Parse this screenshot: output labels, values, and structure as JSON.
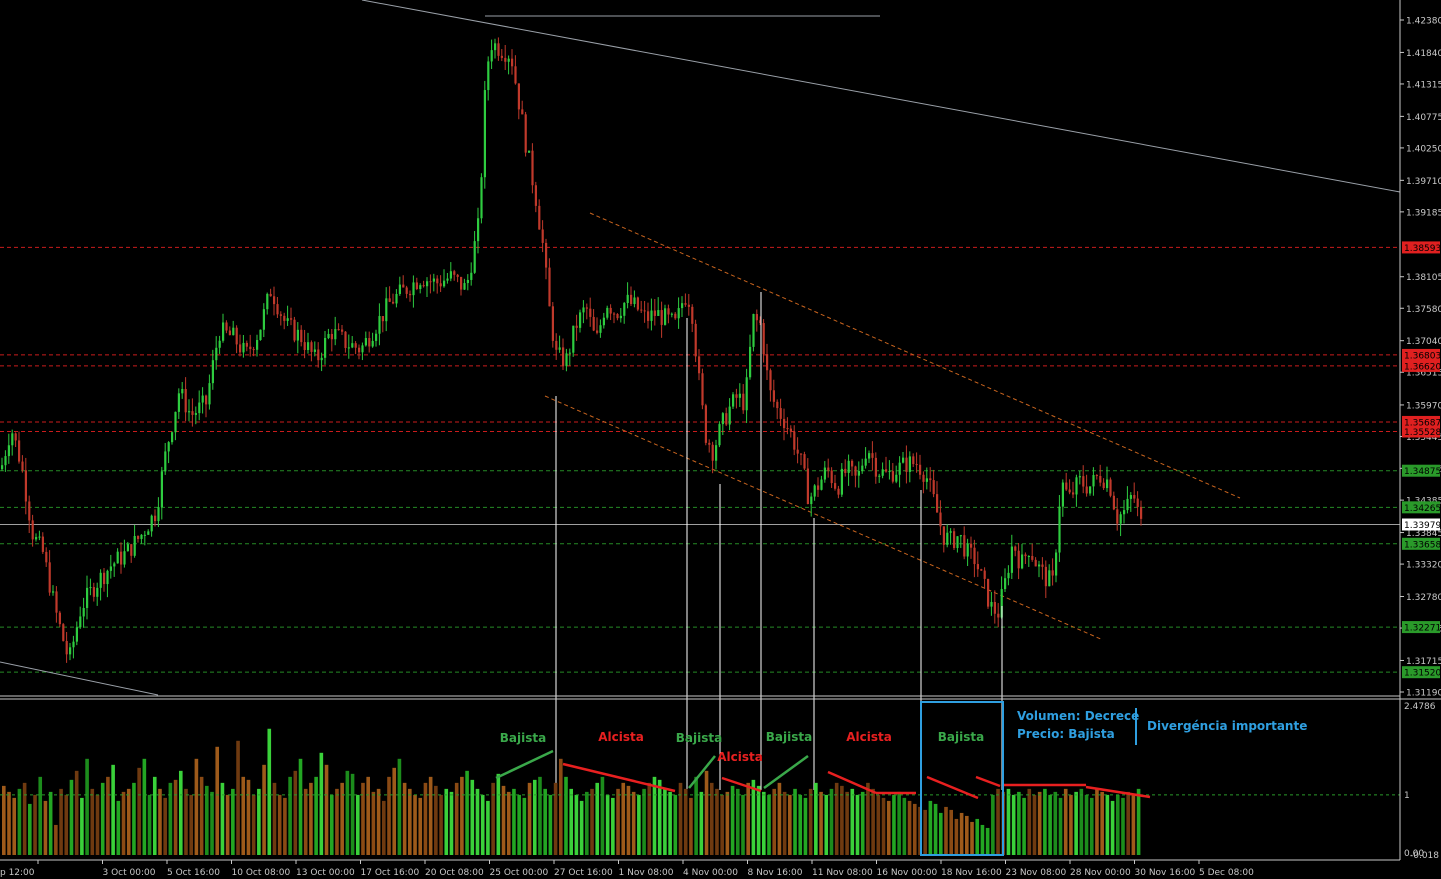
{
  "chart_data": [
    {
      "type": "candlestick",
      "title": "",
      "price_axis": {
        "ticks": [
          "1.42380",
          "1.41840",
          "1.41315",
          "1.40775",
          "1.40250",
          "1.39710",
          "1.39185",
          "1.38105",
          "1.37580",
          "1.37040",
          "1.36515",
          "1.35970",
          "1.35445",
          "1.34915",
          "1.34385",
          "1.33845",
          "1.33320",
          "1.32780",
          "1.32255",
          "1.31715",
          "1.31190"
        ],
        "ylim": [
          1.3119,
          1.4238
        ]
      },
      "price_levels": [
        {
          "label": "1.38593",
          "value": 1.38593,
          "color": "#e02020"
        },
        {
          "label": "1.36803",
          "value": 1.36803,
          "color": "#e02020"
        },
        {
          "label": "1.36620",
          "value": 1.3662,
          "color": "#e02020"
        },
        {
          "label": "1.35687",
          "value": 1.35687,
          "color": "#e02020"
        },
        {
          "label": "1.35528",
          "value": 1.35528,
          "color": "#e02020"
        },
        {
          "label": "1.34875",
          "value": 1.34875,
          "color": "#2a9a2a"
        },
        {
          "label": "1.34265",
          "value": 1.34265,
          "color": "#2a9a2a"
        },
        {
          "label": "1.33979",
          "value": 1.33979,
          "color": "#c8c8c8"
        },
        {
          "label": "1.33658",
          "value": 1.33658,
          "color": "#2a9a2a"
        },
        {
          "label": "1.32271",
          "value": 1.32271,
          "color": "#2a9a2a"
        },
        {
          "label": "1.31520",
          "value": 1.3152,
          "color": "#2a9a2a"
        }
      ],
      "time_axis": {
        "ticks": [
          "p 12:00",
          "3 Oct 00:00",
          "5 Oct 16:00",
          "10 Oct 08:00",
          "13 Oct 00:00",
          "17 Oct 16:00",
          "20 Oct 08:00",
          "25 Oct 00:00",
          "27 Oct 16:00",
          "1 Nov 08:00",
          "4 Nov 00:00",
          "8 Nov 16:00",
          "11 Nov 08:00",
          "16 Nov 00:00",
          "18 Nov 16:00",
          "23 Nov 08:00",
          "28 Nov 00:00",
          "30 Nov 16:00",
          "5 Dec 08:00"
        ]
      },
      "price_path": [
        [
          0,
          1.349
        ],
        [
          10,
          1.356
        ],
        [
          20,
          1.35
        ],
        [
          32,
          1.338
        ],
        [
          42,
          1.335
        ],
        [
          55,
          1.325
        ],
        [
          68,
          1.317
        ],
        [
          80,
          1.326
        ],
        [
          95,
          1.33
        ],
        [
          110,
          1.333
        ],
        [
          125,
          1.335
        ],
        [
          140,
          1.338
        ],
        [
          155,
          1.342
        ],
        [
          165,
          1.352
        ],
        [
          178,
          1.362
        ],
        [
          190,
          1.358
        ],
        [
          205,
          1.36
        ],
        [
          218,
          1.372
        ],
        [
          232,
          1.371
        ],
        [
          245,
          1.368
        ],
        [
          258,
          1.372
        ],
        [
          270,
          1.379
        ],
        [
          285,
          1.373
        ],
        [
          300,
          1.371
        ],
        [
          315,
          1.367
        ],
        [
          330,
          1.372
        ],
        [
          345,
          1.37
        ],
        [
          360,
          1.369
        ],
        [
          375,
          1.373
        ],
        [
          390,
          1.377
        ],
        [
          405,
          1.379
        ],
        [
          420,
          1.381
        ],
        [
          435,
          1.38
        ],
        [
          450,
          1.381
        ],
        [
          465,
          1.379
        ],
        [
          478,
          1.39
        ],
        [
          485,
          1.415
        ],
        [
          490,
          1.42
        ],
        [
          500,
          1.419
        ],
        [
          510,
          1.418
        ],
        [
          518,
          1.41
        ],
        [
          525,
          1.403
        ],
        [
          535,
          1.394
        ],
        [
          542,
          1.386
        ],
        [
          548,
          1.376
        ],
        [
          555,
          1.368
        ],
        [
          565,
          1.367
        ],
        [
          575,
          1.373
        ],
        [
          585,
          1.376
        ],
        [
          595,
          1.37
        ],
        [
          605,
          1.377
        ],
        [
          615,
          1.375
        ],
        [
          625,
          1.377
        ],
        [
          635,
          1.376
        ],
        [
          645,
          1.374
        ],
        [
          655,
          1.375
        ],
        [
          665,
          1.374
        ],
        [
          675,
          1.373
        ],
        [
          683,
          1.378
        ],
        [
          690,
          1.377
        ],
        [
          697,
          1.365
        ],
        [
          704,
          1.355
        ],
        [
          712,
          1.352
        ],
        [
          720,
          1.356
        ],
        [
          728,
          1.359
        ],
        [
          736,
          1.361
        ],
        [
          744,
          1.36
        ],
        [
          752,
          1.374
        ],
        [
          760,
          1.373
        ],
        [
          768,
          1.362
        ],
        [
          776,
          1.359
        ],
        [
          784,
          1.357
        ],
        [
          792,
          1.354
        ],
        [
          800,
          1.35
        ],
        [
          808,
          1.344
        ],
        [
          816,
          1.346
        ],
        [
          826,
          1.349
        ],
        [
          836,
          1.346
        ],
        [
          846,
          1.349
        ],
        [
          856,
          1.347
        ],
        [
          866,
          1.353
        ],
        [
          876,
          1.349
        ],
        [
          886,
          1.348
        ],
        [
          896,
          1.349
        ],
        [
          906,
          1.35
        ],
        [
          916,
          1.35
        ],
        [
          925,
          1.348
        ],
        [
          934,
          1.343
        ],
        [
          942,
          1.338
        ],
        [
          950,
          1.337
        ],
        [
          958,
          1.338
        ],
        [
          966,
          1.335
        ],
        [
          974,
          1.334
        ],
        [
          982,
          1.33
        ],
        [
          990,
          1.326
        ],
        [
          997,
          1.325
        ],
        [
          1004,
          1.33
        ],
        [
          1012,
          1.337
        ],
        [
          1020,
          1.333
        ],
        [
          1028,
          1.336
        ],
        [
          1036,
          1.333
        ],
        [
          1044,
          1.331
        ],
        [
          1052,
          1.33
        ],
        [
          1060,
          1.347
        ],
        [
          1068,
          1.344
        ],
        [
          1078,
          1.347
        ],
        [
          1088,
          1.346
        ],
        [
          1098,
          1.348
        ],
        [
          1108,
          1.347
        ],
        [
          1116,
          1.341
        ],
        [
          1124,
          1.342
        ],
        [
          1132,
          1.345
        ],
        [
          1140,
          1.3398
        ]
      ]
    },
    {
      "type": "bar",
      "title": "",
      "ylim": [
        0,
        2.4786
      ],
      "y_ticks": [
        "2.4786",
        "1",
        "0.00",
        "-0.018"
      ],
      "values": [
        1.15,
        1.05,
        0.95,
        1.1,
        1.2,
        0.85,
        1.0,
        1.3,
        0.9,
        1.05,
        0.5,
        1.1,
        1.0,
        1.25,
        1.4,
        0.95,
        1.6,
        1.1,
        1.0,
        1.2,
        1.3,
        1.5,
        0.9,
        1.05,
        1.1,
        1.2,
        1.45,
        1.6,
        1.0,
        1.3,
        1.1,
        0.95,
        1.2,
        1.25,
        1.4,
        1.1,
        1.0,
        1.6,
        1.3,
        1.15,
        1.05,
        1.8,
        1.2,
        1.0,
        1.1,
        1.9,
        1.3,
        1.25,
        1.0,
        1.1,
        1.5,
        2.1,
        1.2,
        1.0,
        0.95,
        1.3,
        1.4,
        1.6,
        1.1,
        1.2,
        1.3,
        1.7,
        1.5,
        1.0,
        1.1,
        1.2,
        1.4,
        1.35,
        1.0,
        1.2,
        1.3,
        1.05,
        1.1,
        0.9,
        1.3,
        1.45,
        1.6,
        1.2,
        1.1,
        1.0,
        0.95,
        1.2,
        1.3,
        1.15,
        1.0,
        1.1,
        1.05,
        1.2,
        1.3,
        1.4,
        1.25,
        1.1,
        1.0,
        0.9,
        1.2,
        1.35,
        1.15,
        1.05,
        1.1,
        1.0,
        0.95,
        1.2,
        1.25,
        1.3,
        1.1,
        1.0,
        1.2,
        1.6,
        1.3,
        1.1,
        1.0,
        0.9,
        1.05,
        1.1,
        1.2,
        1.3,
        1.0,
        0.95,
        1.1,
        1.2,
        1.15,
        1.05,
        1.0,
        1.1,
        1.2,
        1.3,
        1.25,
        1.1,
        1.05,
        1.0,
        1.2,
        1.1,
        0.95,
        1.3,
        1.05,
        1.4,
        1.2,
        1.1,
        1.0,
        1.05,
        1.15,
        1.1,
        1.0,
        1.2,
        1.25,
        1.15,
        1.05,
        1.0,
        1.1,
        1.2,
        1.05,
        1.0,
        1.1,
        1.0,
        0.95,
        1.1,
        1.2,
        1.05,
        1.0,
        1.1,
        1.2,
        1.15,
        1.05,
        1.1,
        1.0,
        1.05,
        1.2,
        1.1,
        1.0,
        0.95,
        0.9,
        1.0,
        1.05,
        0.95,
        0.9,
        0.85,
        0.8,
        0.75,
        0.9,
        0.85,
        0.7,
        0.8,
        0.75,
        0.6,
        0.7,
        0.65,
        0.55,
        0.6,
        0.5,
        0.45,
        1.0,
        1.1,
        1.05,
        1.1,
        1.0,
        1.05,
        0.95,
        1.1,
        1.0,
        1.05,
        1.1,
        1.0,
        1.05,
        0.95,
        1.1,
        1.0,
        1.05,
        1.1,
        1.0,
        0.95,
        1.1,
        1.05,
        1.0,
        0.9,
        1.0,
        0.95,
        1.05,
        1.0,
        1.1
      ]
    }
  ],
  "annotations": [
    {
      "id": "bajista-1",
      "text": "Bajista",
      "color": "#3aa84a"
    },
    {
      "id": "alcista-1",
      "text": "Alcista",
      "color": "#e82020"
    },
    {
      "id": "bajista-2",
      "text": "Bajista",
      "color": "#3aa84a"
    },
    {
      "id": "alcista-2",
      "text": "Alcista",
      "color": "#e82020"
    },
    {
      "id": "bajista-3",
      "text": "Bajista",
      "color": "#3aa84a"
    },
    {
      "id": "alcista-3",
      "text": "Alcista",
      "color": "#e82020"
    },
    {
      "id": "bajista-4",
      "text": "Bajista",
      "color": "#3aa84a"
    }
  ],
  "notes": {
    "volumen": "Volumen: Decrece",
    "precio": "Precio: Bajista",
    "divergencia": "Divergéncia importante",
    "color": "#2f9fe0"
  },
  "colors": {
    "bull": "#2ecc40",
    "bear": "#c0392b",
    "vol_green": "#27c227",
    "vol_brown": "#8b4513",
    "axis": "#c8c8c8",
    "grid_red": "#e02020",
    "grid_green": "#2a9a2a"
  }
}
